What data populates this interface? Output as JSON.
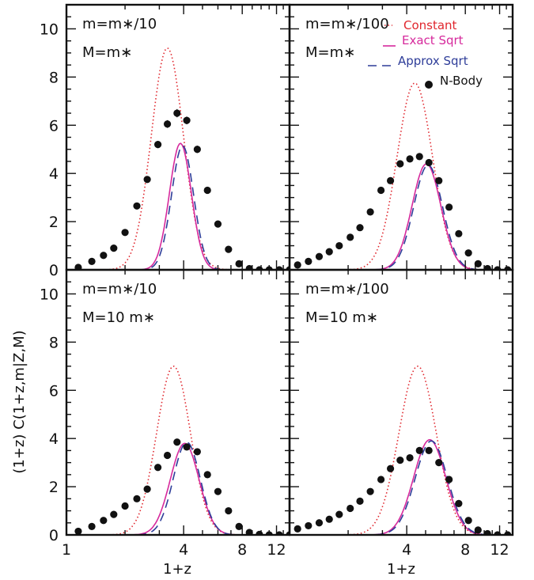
{
  "chart_data": {
    "type": "line",
    "ylabel": "(1+z) C(1+z,m|Z,M)",
    "xlabel": "1+z",
    "x_scale": "log",
    "xlim_by_column": [
      [
        1,
        14
      ],
      [
        1,
        14
      ]
    ],
    "x_ticks_by_column": [
      [
        1,
        4,
        8,
        12
      ],
      [
        4,
        8,
        12
      ]
    ],
    "ylim": [
      0,
      11
    ],
    "y_ticks_by_row": [
      [
        0,
        2,
        4,
        6,
        8,
        10
      ],
      [
        0,
        2,
        4,
        6,
        8,
        10
      ]
    ],
    "grid": false,
    "legend": {
      "placement": "top-right of upper-right panel",
      "entries": [
        {
          "label": "Constant",
          "style": "dotted",
          "color": "#e0262d"
        },
        {
          "label": "Exact Sqrt",
          "style": "solid",
          "color": "#d6299c"
        },
        {
          "label": "Approx Sqrt",
          "style": "dashed",
          "color": "#2e3d99"
        },
        {
          "label": "N-Body",
          "style": "points",
          "color": "#111111"
        }
      ]
    },
    "panels": [
      {
        "row": 0,
        "col": 0,
        "label_line1": "m=m∗/10",
        "label_line2": "M=m∗",
        "constant_peak": {
          "x": 3.3,
          "y": 9.2,
          "width": 0.19
        },
        "exact_peak": {
          "x": 3.85,
          "y": 5.25,
          "width": 0.13
        },
        "approx_peak": {
          "x": 3.95,
          "y": 5.15,
          "width": 0.13
        },
        "nbody": {
          "x": [
            1.15,
            1.35,
            1.55,
            1.75,
            2.0,
            2.3,
            2.6,
            2.95,
            3.3,
            3.7,
            4.15,
            4.7,
            5.3,
            6.0,
            6.8,
            7.7,
            8.7,
            9.8,
            11.0,
            12.4,
            14.0
          ],
          "y": [
            0.1,
            0.35,
            0.6,
            0.9,
            1.55,
            2.65,
            3.75,
            5.2,
            6.05,
            6.5,
            6.2,
            5.0,
            3.3,
            1.9,
            0.85,
            0.25,
            0.05,
            0.0,
            0.0,
            0.0,
            0.0
          ],
          "err": [
            0.05,
            0.06,
            0.07,
            0.08,
            0.1,
            0.12,
            0.13,
            0.15,
            0.16,
            0.17,
            0.16,
            0.15,
            0.13,
            0.1,
            0.07,
            0.05,
            0.03,
            0.02,
            0.02,
            0.02,
            0.02
          ]
        }
      },
      {
        "row": 0,
        "col": 1,
        "label_line1": "m=m∗/100",
        "label_line2": "M=m∗",
        "constant_peak": {
          "x": 4.4,
          "y": 7.75,
          "width": 0.21
        },
        "exact_peak": {
          "x": 5.05,
          "y": 4.4,
          "width": 0.17
        },
        "approx_peak": {
          "x": 5.15,
          "y": 4.35,
          "width": 0.17
        },
        "nbody": {
          "x": [
            1.1,
            1.25,
            1.42,
            1.6,
            1.8,
            2.05,
            2.3,
            2.6,
            2.95,
            3.3,
            3.7,
            4.15,
            4.65,
            5.2,
            5.85,
            6.6,
            7.4,
            8.3,
            9.3,
            10.4,
            11.7,
            13.2
          ],
          "y": [
            0.2,
            0.35,
            0.55,
            0.75,
            1.0,
            1.35,
            1.75,
            2.4,
            3.3,
            3.7,
            4.4,
            4.6,
            4.7,
            4.45,
            3.7,
            2.6,
            1.5,
            0.7,
            0.25,
            0.05,
            0.0,
            0.0
          ],
          "err": [
            0.03,
            0.03,
            0.04,
            0.04,
            0.05,
            0.05,
            0.06,
            0.07,
            0.08,
            0.08,
            0.09,
            0.09,
            0.09,
            0.09,
            0.08,
            0.07,
            0.05,
            0.04,
            0.03,
            0.02,
            0.02,
            0.02
          ]
        }
      },
      {
        "row": 1,
        "col": 0,
        "label_line1": "m=m∗/10",
        "label_line2": "M=10 m∗",
        "constant_peak": {
          "x": 3.55,
          "y": 7.0,
          "width": 0.2
        },
        "exact_peak": {
          "x": 4.05,
          "y": 3.8,
          "width": 0.17
        },
        "approx_peak": {
          "x": 4.15,
          "y": 3.85,
          "width": 0.16
        },
        "nbody": {
          "x": [
            1.15,
            1.35,
            1.55,
            1.75,
            2.0,
            2.3,
            2.6,
            2.95,
            3.3,
            3.7,
            4.15,
            4.7,
            5.3,
            6.0,
            6.8,
            7.7,
            8.7,
            9.8,
            11.0,
            12.4,
            14.0
          ],
          "y": [
            0.15,
            0.35,
            0.6,
            0.85,
            1.2,
            1.5,
            1.9,
            2.8,
            3.3,
            3.85,
            3.65,
            3.45,
            2.5,
            1.8,
            1.0,
            0.35,
            0.1,
            0.02,
            0.0,
            0.0,
            0.0
          ],
          "err": [
            0.05,
            0.06,
            0.07,
            0.08,
            0.09,
            0.1,
            0.1,
            0.12,
            0.12,
            0.13,
            0.12,
            0.12,
            0.1,
            0.09,
            0.07,
            0.05,
            0.03,
            0.02,
            0.02,
            0.02,
            0.02
          ]
        }
      },
      {
        "row": 1,
        "col": 1,
        "label_line1": "m=m∗/100",
        "label_line2": "M=10 m∗",
        "constant_peak": {
          "x": 4.55,
          "y": 7.0,
          "width": 0.22
        },
        "exact_peak": {
          "x": 5.25,
          "y": 3.95,
          "width": 0.19
        },
        "approx_peak": {
          "x": 5.35,
          "y": 3.9,
          "width": 0.19
        },
        "nbody": {
          "x": [
            1.1,
            1.25,
            1.42,
            1.6,
            1.8,
            2.05,
            2.3,
            2.6,
            2.95,
            3.3,
            3.7,
            4.15,
            4.65,
            5.2,
            5.85,
            6.6,
            7.4,
            8.3,
            9.3,
            10.4,
            11.7,
            13.2
          ],
          "y": [
            0.25,
            0.38,
            0.5,
            0.65,
            0.85,
            1.1,
            1.4,
            1.8,
            2.3,
            2.75,
            3.1,
            3.2,
            3.5,
            3.5,
            3.0,
            2.3,
            1.3,
            0.6,
            0.2,
            0.05,
            0.0,
            0.0
          ],
          "err": [
            0.03,
            0.03,
            0.04,
            0.04,
            0.05,
            0.05,
            0.06,
            0.06,
            0.07,
            0.07,
            0.08,
            0.08,
            0.08,
            0.08,
            0.07,
            0.06,
            0.05,
            0.04,
            0.03,
            0.02,
            0.02,
            0.02
          ]
        }
      }
    ]
  }
}
